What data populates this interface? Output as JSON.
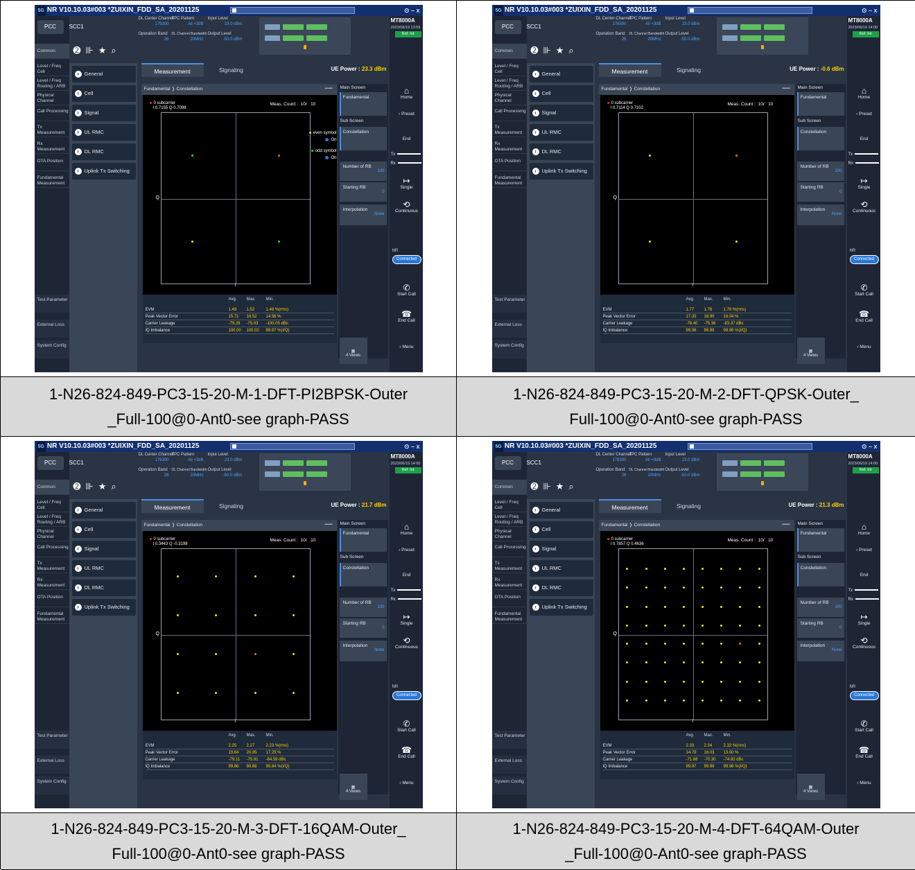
{
  "app": {
    "title": "NR V10.10.03#003 *ZUIXIN_FDD_SA_20201125",
    "logo": "5G",
    "window_controls": "⊙ – x",
    "brand": "MT8000A",
    "ref": "Ref. Int"
  },
  "carriers": {
    "pcc": "PCC",
    "scc": "SCC1"
  },
  "nav": {
    "items": [
      "Common",
      "Level / Freq Cell",
      "Level / Freq Routing / ARB",
      "Physical Channel",
      "Call Processing",
      "Tx Measurement",
      "Rx Measurement",
      "OTA Position",
      "Fundamental Measurement"
    ],
    "bottom": [
      "Test Parameter",
      "External Loss",
      "System Config"
    ]
  },
  "menu": {
    "items": [
      "General",
      "Cell",
      "Signal",
      "UL RMC",
      "DL RMC",
      "Uplink Tx Switching"
    ]
  },
  "info": {
    "dl_center_channel_label": "DL Center Channel",
    "dl_center_channel": "176300",
    "tpc_pattern_label": "TPC Pattern",
    "tpc_pattern": "All +3dB",
    "input_level_label": "Input Level",
    "input_level": "23.0 dBm",
    "operation_band_label": "Operation Band",
    "operation_band": "26",
    "dl_bw_label": "DL Channel Bandwidth",
    "dl_bw": "20MHz",
    "output_level_label": "Output Level",
    "output_level": "-50.0 dBm"
  },
  "tabs": {
    "measurement": "Measurement",
    "signaling": "Signaling",
    "ue_power_label": "UE Power :"
  },
  "breadcrumb": {
    "a": "Fundamental",
    "b": "Constellation"
  },
  "plot": {
    "marker_label": "0 subcarrier",
    "meas_count_label": "Meas. Count :",
    "meas_count": "10/",
    "meas_total": "10",
    "q": "Q",
    "i": "I",
    "even": "even symbol",
    "odd": "odd symbol",
    "on": "On"
  },
  "table": {
    "h_avg": "Avg.",
    "h_max": "Max.",
    "h_min": "Min.",
    "rows": [
      "EVM",
      "Peak Vector Error",
      "Carrier Leakage",
      "IQ Imbalance"
    ]
  },
  "side": {
    "main_screen": "Main Screen",
    "fundamental": "Fundamental",
    "sub_screen": "Sub Screen",
    "constellation": "Constellation",
    "num_rb": "Number of RB",
    "num_rb_val": "100",
    "start_rb": "Starting RB",
    "start_rb_val": "0",
    "interp": "Interpolation",
    "interp_val": "None",
    "views": "4 Views"
  },
  "right": {
    "home": "Home",
    "preset": "Preset",
    "end": "End",
    "tx": "Tx",
    "rx": "Rx",
    "single": "Single",
    "continuous": "Continuous",
    "nr": "NR",
    "connected": "Connected",
    "start_call": "Start Call",
    "end_call": "End Call",
    "menu": "Menu"
  },
  "panels": [
    {
      "timestamp": "2023/06/19 13:59",
      "ue_power": "23.3 dBm",
      "marker_value": "I 0.7155 Q 0.7098",
      "show_legend": true,
      "evm": [
        "1.49",
        "1.52",
        "1.48 %(rms)"
      ],
      "pve": [
        "15.71",
        "16.52",
        "14.56 %"
      ],
      "cl": [
        "-79.28",
        "-75.03",
        "-100.05 dBc"
      ],
      "iq": [
        "100.00",
        "100.02",
        "99.97 %(I/Q)"
      ],
      "caption": [
        "1-N26-824-849-PC3-15-20-M-1-DFT-PI2BPSK-Outer",
        "_Full-100@0-Ant0-see graph-PASS"
      ]
    },
    {
      "timestamp": "2023/06/19 14:00",
      "ue_power": "-0.6 dBm",
      "marker_value": "I 0.7114 Q 0.7102",
      "show_legend": false,
      "evm": [
        "1.77",
        "1.78",
        "1.76 %(rms)"
      ],
      "pve": [
        "17.33",
        "18.90",
        "16.04 %"
      ],
      "cl": [
        "-78.40",
        "-75.36",
        "-83.37 dBc"
      ],
      "iq": [
        "99.98",
        "99.99",
        "99.96 %(I/Q)"
      ],
      "caption": [
        "1-N26-824-849-PC3-15-20-M-2-DFT-QPSK-Outer_",
        "Full-100@0-Ant0-see graph-PASS"
      ]
    },
    {
      "timestamp": "2023/06/19 14:00",
      "ue_power": "21.7 dBm",
      "marker_value": "I 0.3443 Q -0.3198",
      "show_legend": false,
      "evm": [
        "2.25",
        "2.27",
        "2.23 %(rms)"
      ],
      "pve": [
        "19.64",
        "20.85",
        "17.29 %"
      ],
      "cl": [
        "-79.11",
        "-75.91",
        "-84.59 dBc"
      ],
      "iq": [
        "99.86",
        "99.88",
        "99.84 %(I/Q)"
      ],
      "caption": [
        "1-N26-824-849-PC3-15-20-M-3-DFT-16QAM-Outer_",
        "Full-100@0-Ant0-see graph-PASS"
      ]
    },
    {
      "timestamp": "2023/06/19 14:00",
      "ue_power": "21.3 dBm",
      "marker_value": "I 0.7857 Q 0.4636",
      "show_legend": false,
      "evm": [
        "2.33",
        "2.34",
        "2.32 %(rms)"
      ],
      "pve": [
        "14.79",
        "16.03",
        "13.00 %"
      ],
      "cl": [
        "-71.88",
        "-70.30",
        "-74.83 dBc"
      ],
      "iq": [
        "99.97",
        "99.98",
        "99.96 %(I/Q)"
      ],
      "caption": [
        "1-N26-824-849-PC3-15-20-M-4-DFT-64QAM-Outer",
        "_Full-100@0-Ant0-see graph-PASS"
      ]
    }
  ],
  "constellations": [
    {
      "points": [
        {
          "i": -0.71,
          "q": 0.71,
          "c": "green"
        },
        {
          "i": 0.71,
          "q": 0.71,
          "c": "orange"
        },
        {
          "i": -0.71,
          "q": -0.71,
          "c": "yellow"
        },
        {
          "i": 0.71,
          "q": -0.71,
          "c": "green"
        }
      ]
    },
    {
      "points": [
        {
          "i": -0.71,
          "q": 0.71,
          "c": "yellow"
        },
        {
          "i": 0.71,
          "q": 0.71,
          "c": "orange"
        },
        {
          "i": -0.71,
          "q": -0.71,
          "c": "yellow"
        },
        {
          "i": 0.71,
          "q": -0.71,
          "c": "yellow"
        }
      ]
    },
    {
      "grid": 4,
      "levels": [
        -0.95,
        -0.32,
        0.32,
        0.95
      ],
      "highlight": [
        2,
        1
      ]
    },
    {
      "grid": 8,
      "levels": [
        -1.08,
        -0.77,
        -0.46,
        -0.15,
        0.15,
        0.46,
        0.77,
        1.08
      ],
      "highlight": [
        6,
        3
      ]
    }
  ],
  "colors": {
    "yellow": "#ffe600",
    "green": "#22dd22",
    "orange": "#ff6a00",
    "blue": "#2a78d8"
  }
}
